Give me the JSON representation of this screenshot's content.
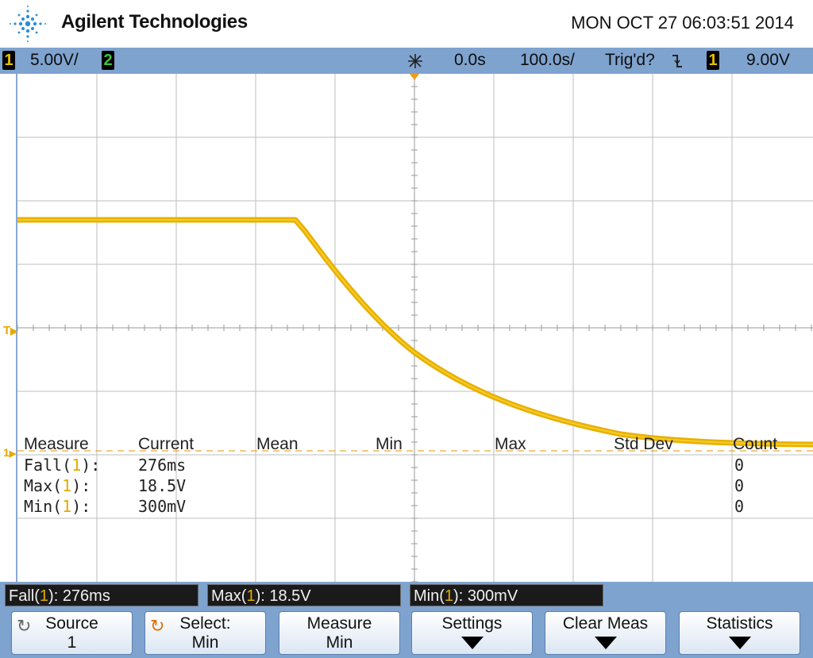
{
  "header": {
    "brand": "Agilent Technologies",
    "datetime": "MON OCT 27 06:03:51 2014"
  },
  "status": {
    "ch1_label": "1",
    "ch1_scale": "5.00V/",
    "ch2_label": "2",
    "time_offset": "0.0s",
    "time_base": "100.0s/",
    "trigger_status": "Trig'd?",
    "trigger_ch": "1",
    "trigger_level": "9.00V"
  },
  "markers": {
    "trigger_marker": "T",
    "ground_marker": "1"
  },
  "measurements": {
    "headers": [
      "Measure",
      "Current",
      "Mean",
      "Min",
      "Max",
      "Std Dev",
      "Count"
    ],
    "rows": [
      {
        "name": "Fall",
        "ch": "1",
        "current": "276ms",
        "count": "0"
      },
      {
        "name": "Max",
        "ch": "1",
        "current": "18.5V",
        "count": "0"
      },
      {
        "name": "Min",
        "ch": "1",
        "current": "300mV",
        "count": "0"
      }
    ]
  },
  "readouts": [
    {
      "name": "Fall",
      "ch": "1",
      "value": "276ms"
    },
    {
      "name": "Max",
      "ch": "1",
      "value": "18.5V"
    },
    {
      "name": "Min",
      "ch": "1",
      "value": "300mV"
    }
  ],
  "softkeys": [
    {
      "line1": "Source",
      "line2": "1",
      "icon": "rotate-knob-icon"
    },
    {
      "line1": "Select:",
      "line2": "Min",
      "icon": "rotate-knob-icon"
    },
    {
      "line1": "Measure",
      "line2": "Min",
      "icon": ""
    },
    {
      "line1": "Settings",
      "line2": "",
      "icon": "arrow-down-icon"
    },
    {
      "line1": "Clear Meas",
      "line2": "",
      "icon": "arrow-down-icon"
    },
    {
      "line1": "Statistics",
      "line2": "",
      "icon": "arrow-down-icon"
    }
  ],
  "colors": {
    "trace": "#e8b000",
    "bar_blue": "#7fa3cf",
    "ch2_green": "#3dc33d"
  }
}
